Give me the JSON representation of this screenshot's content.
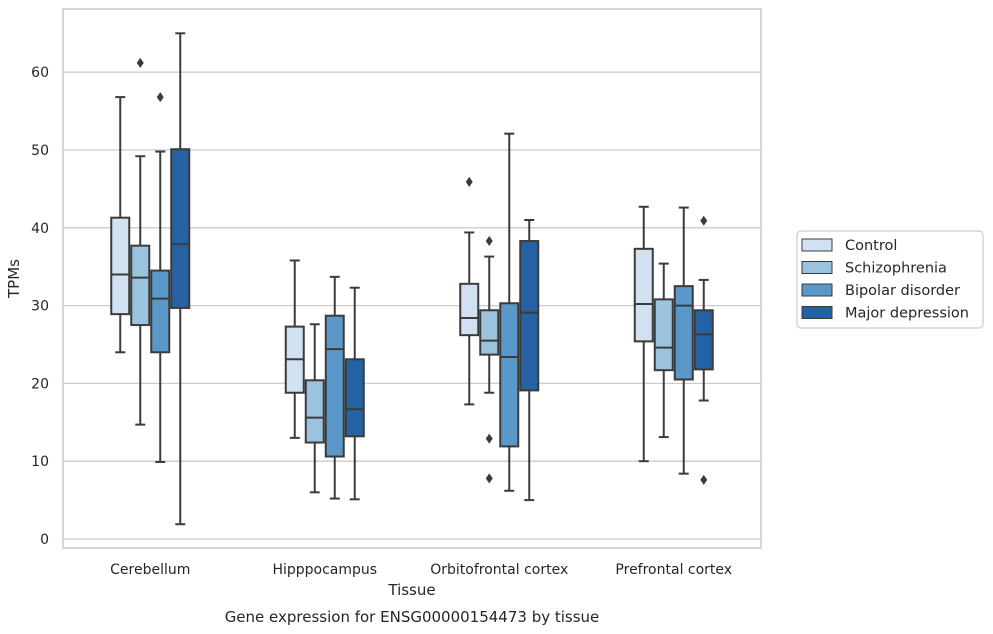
{
  "chart_data": {
    "type": "boxplot",
    "title": "Gene expression for ENSG00000154473 by tissue",
    "xlabel": "Tissue",
    "ylabel": "TPMs",
    "ylim": [
      -1,
      68
    ],
    "yticks": [
      0,
      10,
      20,
      30,
      40,
      50,
      60
    ],
    "grid": "horizontal",
    "legend_position": "right",
    "categories": [
      "Cerebellum",
      "Hipppocampus",
      "Orbitofrontal cortex",
      "Prefrontal cortex"
    ],
    "series": [
      {
        "name": "Control",
        "color": "#d1e1f1",
        "boxes": [
          {
            "min": 24.0,
            "q1": 28.9,
            "median": 34.0,
            "q3": 41.3,
            "max": 56.8,
            "outliers": []
          },
          {
            "min": 13.0,
            "q1": 18.8,
            "median": 23.1,
            "q3": 27.3,
            "max": 35.8,
            "outliers": []
          },
          {
            "min": 17.3,
            "q1": 26.2,
            "median": 28.4,
            "q3": 32.8,
            "max": 39.4,
            "outliers": [
              45.9
            ]
          },
          {
            "min": 10.0,
            "q1": 25.4,
            "median": 30.2,
            "q3": 37.3,
            "max": 42.7,
            "outliers": []
          }
        ]
      },
      {
        "name": "Schizophrenia",
        "color": "#9cc3de",
        "boxes": [
          {
            "min": 14.7,
            "q1": 27.5,
            "median": 33.6,
            "q3": 37.7,
            "max": 49.2,
            "outliers": [
              61.2
            ]
          },
          {
            "min": 6.0,
            "q1": 12.4,
            "median": 15.6,
            "q3": 20.4,
            "max": 27.6,
            "outliers": []
          },
          {
            "min": 18.8,
            "q1": 23.7,
            "median": 25.5,
            "q3": 29.4,
            "max": 36.3,
            "outliers": [
              38.3,
              12.9,
              7.8
            ]
          },
          {
            "min": 13.1,
            "q1": 21.7,
            "median": 24.6,
            "q3": 30.8,
            "max": 35.4,
            "outliers": []
          }
        ]
      },
      {
        "name": "Bipolar disorder",
        "color": "#5998c8",
        "boxes": [
          {
            "min": 9.9,
            "q1": 24.0,
            "median": 30.9,
            "q3": 34.5,
            "max": 49.8,
            "outliers": [
              56.8
            ]
          },
          {
            "min": 5.2,
            "q1": 10.6,
            "median": 24.4,
            "q3": 28.7,
            "max": 33.7,
            "outliers": []
          },
          {
            "min": 6.2,
            "q1": 11.9,
            "median": 23.4,
            "q3": 30.3,
            "max": 52.1,
            "outliers": []
          },
          {
            "min": 8.4,
            "q1": 20.5,
            "median": 30.0,
            "q3": 32.5,
            "max": 42.6,
            "outliers": []
          }
        ]
      },
      {
        "name": "Major depression",
        "color": "#2462a3",
        "boxes": [
          {
            "min": 1.9,
            "q1": 29.7,
            "median": 37.9,
            "q3": 50.1,
            "max": 65.0,
            "outliers": []
          },
          {
            "min": 5.1,
            "q1": 13.2,
            "median": 16.7,
            "q3": 23.1,
            "max": 32.3,
            "outliers": []
          },
          {
            "min": 5.0,
            "q1": 19.1,
            "median": 29.1,
            "q3": 38.3,
            "max": 41.0,
            "outliers": []
          },
          {
            "min": 17.8,
            "q1": 21.8,
            "median": 26.3,
            "q3": 29.4,
            "max": 33.3,
            "outliers": [
              40.9,
              7.6
            ]
          }
        ]
      }
    ]
  }
}
